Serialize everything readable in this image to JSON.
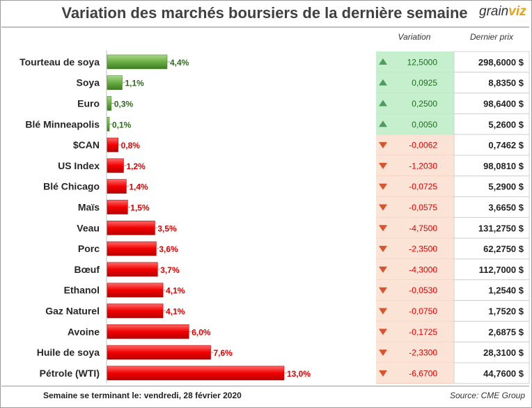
{
  "title": "Variation des marchés boursiers de la dernière semaine",
  "logo": {
    "text_main": "grain",
    "text_accent": "viz"
  },
  "table_headers": {
    "variation": "Variation",
    "price": "Dernier prix"
  },
  "footer": {
    "week_label": "Semaine se terminant le:  vendredi, 28 février 2020",
    "source": "Source: CME Group"
  },
  "colors": {
    "positive_bar": "#5f9f3b",
    "negative_bar": "#e00000",
    "positive_text": "#2e6b1a",
    "negative_text": "#e00000",
    "positive_fill": "#c6efce",
    "negative_fill": "#fbe3d6",
    "up_arrow": "#4f9a5e",
    "down_arrow": "#d9532c"
  },
  "chart_data": {
    "type": "bar",
    "orientation": "horizontal",
    "categories": [
      "Tourteau de soya",
      "Soya",
      "Euro",
      "Blé Minneapolis",
      "$CAN",
      "US Index",
      "Blé Chicago",
      "Maïs",
      "Veau",
      "Porc",
      "Bœuf",
      "Ethanol",
      "Gaz Naturel",
      "Avoine",
      "Huile de soya",
      "Pétrole (WTI)"
    ],
    "values": [
      4.4,
      1.1,
      0.3,
      0.1,
      0.8,
      1.2,
      1.4,
      1.5,
      3.5,
      3.6,
      3.7,
      4.1,
      4.1,
      6.0,
      7.6,
      13.0
    ],
    "value_labels": [
      "4,4%",
      "1,1%",
      "0,3%",
      "0,1%",
      "0,8%",
      "1,2%",
      "1,4%",
      "1,5%",
      "3,5%",
      "3,6%",
      "3,7%",
      "4,1%",
      "4,1%",
      "6,0%",
      "7,6%",
      "13,0%"
    ],
    "direction": [
      "up",
      "up",
      "up",
      "up",
      "down",
      "down",
      "down",
      "down",
      "down",
      "down",
      "down",
      "down",
      "down",
      "down",
      "down",
      "down"
    ],
    "variation": [
      "12,5000",
      "0,0925",
      "0,2500",
      "0,0050",
      "-0,0062",
      "-1,2030",
      "-0,0725",
      "-0,0575",
      "-4,7500",
      "-2,3500",
      "-4,3000",
      "-0,0530",
      "-0,0750",
      "-0,1725",
      "-2,3300",
      "-6,6700"
    ],
    "last_price": [
      "298,6000 $",
      "8,8350 $",
      "98,6400 $",
      "5,2600 $",
      "0,7462 $",
      "98,0810 $",
      "5,2900 $",
      "3,6650 $",
      "131,2750 $",
      "62,2750 $",
      "112,7000 $",
      "1,2540 $",
      "1,7520 $",
      "2,6875 $",
      "28,3100 $",
      "44,7600 $"
    ],
    "title": "Variation des marchés boursiers de la dernière semaine",
    "xlim": [
      0,
      13.0
    ],
    "grid": false,
    "legend": "none"
  }
}
